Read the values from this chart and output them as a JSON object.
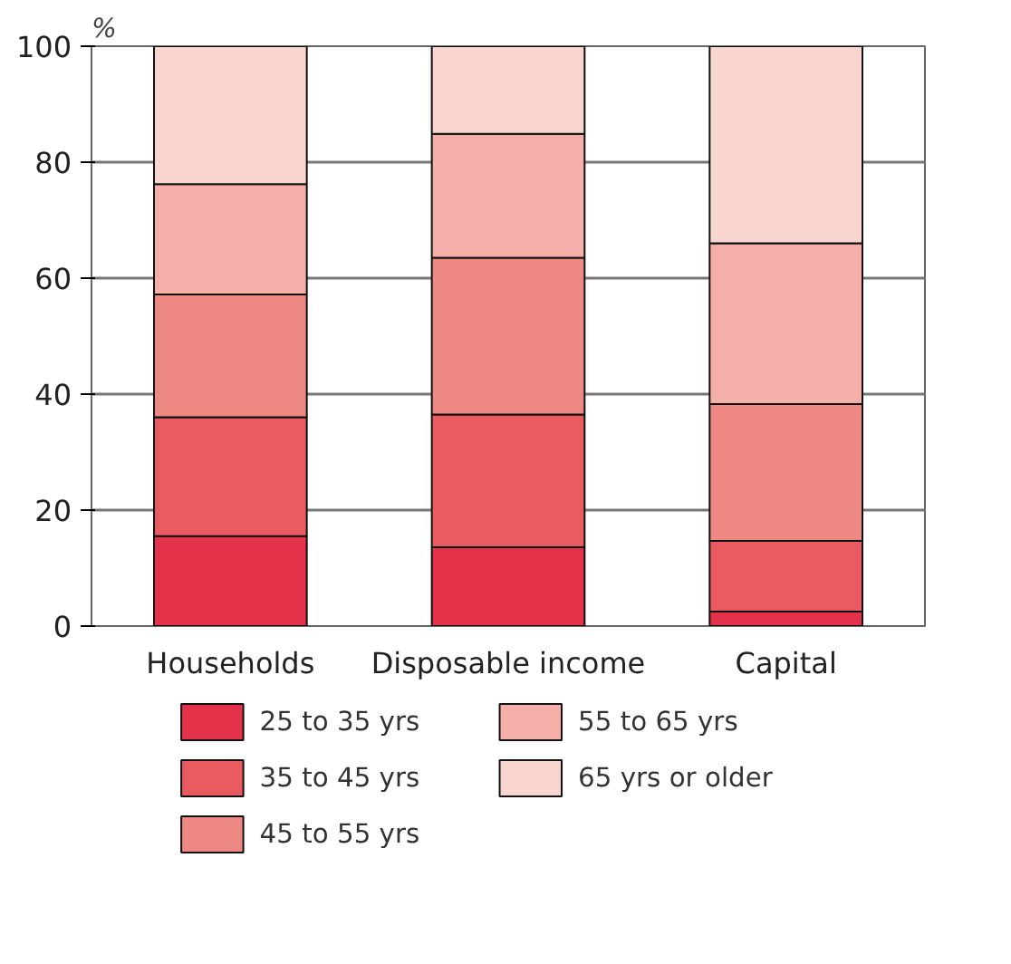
{
  "chart_data": {
    "type": "bar",
    "stacked": true,
    "ylabel": "%",
    "categories": [
      "Households",
      "Disposable income",
      "Capital"
    ],
    "series": [
      {
        "name": "25 to 35 yrs",
        "color": "#e3324a",
        "values": [
          15.5,
          13.6,
          2.5
        ]
      },
      {
        "name": "35 to 45 yrs",
        "color": "#e95a61",
        "values": [
          20.5,
          22.9,
          12.2
        ]
      },
      {
        "name": "45 to 55 yrs",
        "color": "#ee8882",
        "values": [
          21.2,
          27.0,
          23.6
        ]
      },
      {
        "name": "55 to 65 yrs",
        "color": "#f4b0a8",
        "values": [
          19.0,
          21.4,
          27.7
        ]
      },
      {
        "name": "65 yrs or older",
        "color": "#f9d5cf",
        "values": [
          23.8,
          15.1,
          34.0
        ]
      }
    ],
    "ylim": [
      0,
      100
    ],
    "yticks": [
      0,
      20,
      40,
      60,
      80,
      100
    ],
    "grid": "y",
    "legend": "bottom"
  }
}
